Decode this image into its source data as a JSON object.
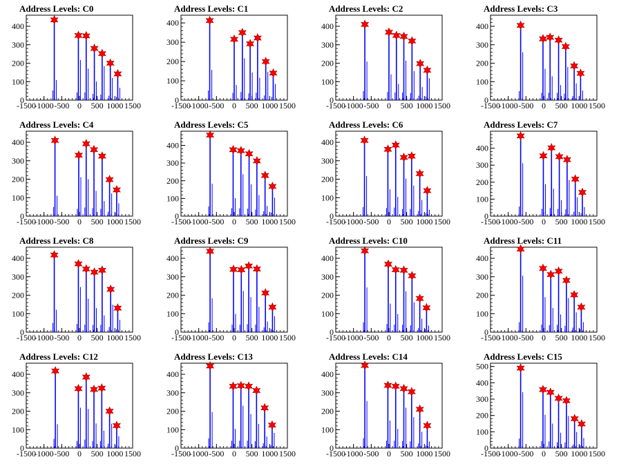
{
  "figure": {
    "background": "#ffffff",
    "frame_color": "#000000"
  },
  "colors": {
    "histogram": "#0000ff",
    "marker_fill": "#ff0000",
    "marker_stroke": "#b00000"
  },
  "marker_shape": "star-icon",
  "chart_data": [
    {
      "type": "histogram-with-markers",
      "title": "Address Levels: C0",
      "xlim": [
        -1500,
        1500
      ],
      "ylim": [
        0,
        460
      ],
      "xticks": [
        -1500,
        -1000,
        -500,
        0,
        500,
        1000,
        1500
      ],
      "yticks": [
        0,
        100,
        200,
        300,
        400
      ],
      "peaks": [
        {
          "x": -710,
          "y": 435
        },
        {
          "x": -30,
          "y": 350
        },
        {
          "x": 190,
          "y": 348
        },
        {
          "x": 420,
          "y": 280
        },
        {
          "x": 640,
          "y": 252
        },
        {
          "x": 870,
          "y": 200
        },
        {
          "x": 1080,
          "y": 142
        }
      ]
    },
    {
      "type": "histogram-with-markers",
      "title": "Address Levels: C1",
      "xlim": [
        -1500,
        1500
      ],
      "ylim": [
        0,
        440
      ],
      "xticks": [
        -1500,
        -1000,
        -500,
        0,
        500,
        1000,
        1500
      ],
      "yticks": [
        0,
        100,
        200,
        300,
        400
      ],
      "peaks": [
        {
          "x": -690,
          "y": 412
        },
        {
          "x": 0,
          "y": 315
        },
        {
          "x": 230,
          "y": 350
        },
        {
          "x": 450,
          "y": 292
        },
        {
          "x": 660,
          "y": 322
        },
        {
          "x": 890,
          "y": 200
        },
        {
          "x": 1100,
          "y": 140
        }
      ]
    },
    {
      "type": "histogram-with-markers",
      "title": "Address Levels: C2",
      "xlim": [
        -1500,
        1500
      ],
      "ylim": [
        0,
        460
      ],
      "xticks": [
        -1500,
        -1000,
        -500,
        0,
        500,
        1000,
        1500
      ],
      "yticks": [
        0,
        100,
        200,
        300,
        400
      ],
      "peaks": [
        {
          "x": -680,
          "y": 410
        },
        {
          "x": 0,
          "y": 368
        },
        {
          "x": 210,
          "y": 350
        },
        {
          "x": 420,
          "y": 345
        },
        {
          "x": 650,
          "y": 320
        },
        {
          "x": 880,
          "y": 198
        },
        {
          "x": 1080,
          "y": 162
        }
      ]
    },
    {
      "type": "histogram-with-markers",
      "title": "Address Levels: C3",
      "xlim": [
        -1500,
        1500
      ],
      "ylim": [
        0,
        460
      ],
      "xticks": [
        -1500,
        -1000,
        -500,
        0,
        500,
        1000,
        1500
      ],
      "yticks": [
        0,
        100,
        200,
        300,
        400
      ],
      "peaks": [
        {
          "x": -650,
          "y": 405
        },
        {
          "x": -20,
          "y": 332
        },
        {
          "x": 180,
          "y": 340
        },
        {
          "x": 420,
          "y": 325
        },
        {
          "x": 620,
          "y": 290
        },
        {
          "x": 860,
          "y": 185
        },
        {
          "x": 1040,
          "y": 145
        }
      ]
    },
    {
      "type": "histogram-with-markers",
      "title": "Address Levels: C4",
      "xlim": [
        -1500,
        1500
      ],
      "ylim": [
        0,
        460
      ],
      "xticks": [
        -1500,
        -1000,
        -500,
        0,
        500,
        1000,
        1500
      ],
      "yticks": [
        0,
        100,
        200,
        300,
        400
      ],
      "peaks": [
        {
          "x": -690,
          "y": 410
        },
        {
          "x": -20,
          "y": 330
        },
        {
          "x": 190,
          "y": 392
        },
        {
          "x": 410,
          "y": 360
        },
        {
          "x": 640,
          "y": 325
        },
        {
          "x": 850,
          "y": 198
        },
        {
          "x": 1050,
          "y": 142
        }
      ]
    },
    {
      "type": "histogram-with-markers",
      "title": "Address Levels: C5",
      "xlim": [
        -1500,
        1500
      ],
      "ylim": [
        0,
        480
      ],
      "xticks": [
        -1500,
        -1000,
        -500,
        0,
        500,
        1000,
        1500
      ],
      "yticks": [
        0,
        100,
        200,
        300,
        400
      ],
      "peaks": [
        {
          "x": -680,
          "y": 458
        },
        {
          "x": -30,
          "y": 375
        },
        {
          "x": 190,
          "y": 370
        },
        {
          "x": 420,
          "y": 352
        },
        {
          "x": 640,
          "y": 312
        },
        {
          "x": 870,
          "y": 230
        },
        {
          "x": 1080,
          "y": 168
        }
      ]
    },
    {
      "type": "histogram-with-markers",
      "title": "Address Levels: C6",
      "xlim": [
        -1500,
        1500
      ],
      "ylim": [
        0,
        460
      ],
      "xticks": [
        -1500,
        -1000,
        -500,
        0,
        500,
        1000,
        1500
      ],
      "yticks": [
        0,
        100,
        200,
        300,
        400
      ],
      "peaks": [
        {
          "x": -690,
          "y": 410
        },
        {
          "x": -30,
          "y": 362
        },
        {
          "x": 190,
          "y": 385
        },
        {
          "x": 420,
          "y": 318
        },
        {
          "x": 640,
          "y": 325
        },
        {
          "x": 870,
          "y": 230
        },
        {
          "x": 1080,
          "y": 138
        }
      ]
    },
    {
      "type": "histogram-with-markers",
      "title": "Address Levels: C7",
      "xlim": [
        -1500,
        1500
      ],
      "ylim": [
        0,
        500
      ],
      "xticks": [
        -1500,
        -1000,
        -500,
        0,
        500,
        1000,
        1500
      ],
      "yticks": [
        0,
        100,
        200,
        300,
        400
      ],
      "peaks": [
        {
          "x": -650,
          "y": 472
        },
        {
          "x": -10,
          "y": 355
        },
        {
          "x": 220,
          "y": 402
        },
        {
          "x": 440,
          "y": 350
        },
        {
          "x": 660,
          "y": 332
        },
        {
          "x": 890,
          "y": 218
        },
        {
          "x": 1090,
          "y": 140
        }
      ]
    },
    {
      "type": "histogram-with-markers",
      "title": "Address Levels: C8",
      "xlim": [
        -1500,
        1500
      ],
      "ylim": [
        0,
        460
      ],
      "xticks": [
        -1500,
        -1000,
        -500,
        0,
        500,
        1000,
        1500
      ],
      "yticks": [
        0,
        100,
        200,
        300,
        400
      ],
      "peaks": [
        {
          "x": -710,
          "y": 418
        },
        {
          "x": -30,
          "y": 370
        },
        {
          "x": 190,
          "y": 342
        },
        {
          "x": 420,
          "y": 325
        },
        {
          "x": 640,
          "y": 335
        },
        {
          "x": 880,
          "y": 232
        },
        {
          "x": 1080,
          "y": 130
        }
      ]
    },
    {
      "type": "histogram-with-markers",
      "title": "Address Levels: C9",
      "xlim": [
        -1500,
        1500
      ],
      "ylim": [
        0,
        460
      ],
      "xticks": [
        -1500,
        -1000,
        -500,
        0,
        500,
        1000,
        1500
      ],
      "yticks": [
        0,
        100,
        200,
        300,
        400
      ],
      "peaks": [
        {
          "x": -680,
          "y": 438
        },
        {
          "x": -20,
          "y": 340
        },
        {
          "x": 200,
          "y": 338
        },
        {
          "x": 410,
          "y": 358
        },
        {
          "x": 640,
          "y": 342
        },
        {
          "x": 880,
          "y": 212
        },
        {
          "x": 1080,
          "y": 135
        }
      ]
    },
    {
      "type": "histogram-with-markers",
      "title": "Address Levels: C10",
      "xlim": [
        -1500,
        1500
      ],
      "ylim": [
        0,
        460
      ],
      "xticks": [
        -1500,
        -1000,
        -500,
        0,
        500,
        1000,
        1500
      ],
      "yticks": [
        0,
        100,
        200,
        300,
        400
      ],
      "peaks": [
        {
          "x": -680,
          "y": 440
        },
        {
          "x": -20,
          "y": 368
        },
        {
          "x": 190,
          "y": 338
        },
        {
          "x": 420,
          "y": 335
        },
        {
          "x": 650,
          "y": 305
        },
        {
          "x": 870,
          "y": 182
        },
        {
          "x": 1060,
          "y": 132
        }
      ]
    },
    {
      "type": "histogram-with-markers",
      "title": "Address Levels: C11",
      "xlim": [
        -1500,
        1500
      ],
      "ylim": [
        0,
        460
      ],
      "xticks": [
        -1500,
        -1000,
        -500,
        0,
        500,
        1000,
        1500
      ],
      "yticks": [
        0,
        100,
        200,
        300,
        400
      ],
      "peaks": [
        {
          "x": -650,
          "y": 450
        },
        {
          "x": -20,
          "y": 345
        },
        {
          "x": 200,
          "y": 312
        },
        {
          "x": 420,
          "y": 330
        },
        {
          "x": 640,
          "y": 280
        },
        {
          "x": 860,
          "y": 202
        },
        {
          "x": 1060,
          "y": 135
        }
      ]
    },
    {
      "type": "histogram-with-markers",
      "title": "Address Levels: C12",
      "xlim": [
        -1500,
        1500
      ],
      "ylim": [
        0,
        460
      ],
      "xticks": [
        -1500,
        -1000,
        -500,
        0,
        500,
        1000,
        1500
      ],
      "yticks": [
        0,
        100,
        200,
        300,
        400
      ],
      "peaks": [
        {
          "x": -680,
          "y": 418
        },
        {
          "x": -30,
          "y": 322
        },
        {
          "x": 190,
          "y": 385
        },
        {
          "x": 410,
          "y": 318
        },
        {
          "x": 630,
          "y": 325
        },
        {
          "x": 850,
          "y": 200
        },
        {
          "x": 1050,
          "y": 122
        }
      ]
    },
    {
      "type": "histogram-with-markers",
      "title": "Address Levels: C13",
      "xlim": [
        -1500,
        1500
      ],
      "ylim": [
        0,
        460
      ],
      "xticks": [
        -1500,
        -1000,
        -500,
        0,
        500,
        1000,
        1500
      ],
      "yticks": [
        0,
        100,
        200,
        300,
        400
      ],
      "peaks": [
        {
          "x": -680,
          "y": 445
        },
        {
          "x": -30,
          "y": 335
        },
        {
          "x": 190,
          "y": 338
        },
        {
          "x": 410,
          "y": 335
        },
        {
          "x": 630,
          "y": 312
        },
        {
          "x": 860,
          "y": 218
        },
        {
          "x": 1070,
          "y": 125
        }
      ]
    },
    {
      "type": "histogram-with-markers",
      "title": "Address Levels: C14",
      "xlim": [
        -1500,
        1500
      ],
      "ylim": [
        0,
        460
      ],
      "xticks": [
        -1500,
        -1000,
        -500,
        0,
        500,
        1000,
        1500
      ],
      "yticks": [
        0,
        100,
        200,
        300,
        400
      ],
      "peaks": [
        {
          "x": -680,
          "y": 448
        },
        {
          "x": -30,
          "y": 340
        },
        {
          "x": 190,
          "y": 335
        },
        {
          "x": 420,
          "y": 322
        },
        {
          "x": 640,
          "y": 305
        },
        {
          "x": 870,
          "y": 210
        },
        {
          "x": 1080,
          "y": 122
        }
      ]
    },
    {
      "type": "histogram-with-markers",
      "title": "Address Levels: C15",
      "xlim": [
        -1500,
        1500
      ],
      "ylim": [
        0,
        520
      ],
      "xticks": [
        -1500,
        -1000,
        -500,
        0,
        500,
        1000,
        1500
      ],
      "yticks": [
        0,
        100,
        200,
        300,
        400,
        500
      ],
      "peaks": [
        {
          "x": -650,
          "y": 490
        },
        {
          "x": -20,
          "y": 358
        },
        {
          "x": 190,
          "y": 342
        },
        {
          "x": 420,
          "y": 305
        },
        {
          "x": 640,
          "y": 290
        },
        {
          "x": 870,
          "y": 180
        },
        {
          "x": 1070,
          "y": 148
        }
      ]
    }
  ]
}
